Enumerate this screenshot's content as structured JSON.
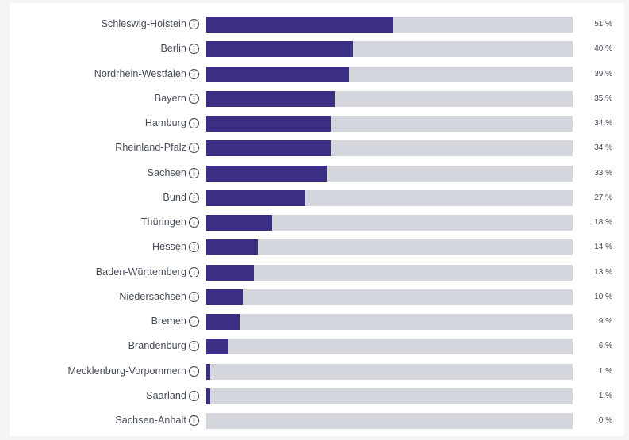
{
  "chart_data": {
    "type": "bar",
    "orientation": "horizontal",
    "categories": [
      "Schleswig-Holstein",
      "Berlin",
      "Nordrhein-Westfalen",
      "Bayern",
      "Hamburg",
      "Rheinland-Pfalz",
      "Sachsen",
      "Bund",
      "Thüringen",
      "Hessen",
      "Baden-Württemberg",
      "Niedersachsen",
      "Bremen",
      "Brandenburg",
      "Mecklenburg-Vorpommern",
      "Saarland",
      "Sachsen-Anhalt"
    ],
    "values": [
      51,
      40,
      39,
      35,
      34,
      34,
      33,
      27,
      18,
      14,
      13,
      10,
      9,
      6,
      1,
      1,
      0
    ],
    "value_labels": [
      "51 %",
      "40 %",
      "39 %",
      "35 %",
      "34 %",
      "34 %",
      "33 %",
      "27 %",
      "18 %",
      "14 %",
      "13 %",
      "10 %",
      "9 %",
      "6 %",
      "1 %",
      "1 %",
      "0 %"
    ],
    "xlim": [
      0,
      100
    ],
    "unit": "%",
    "grid": false,
    "colors": {
      "bar": "#3a2f85",
      "track": "#d3d6dc"
    },
    "row_icon": "info-icon"
  }
}
